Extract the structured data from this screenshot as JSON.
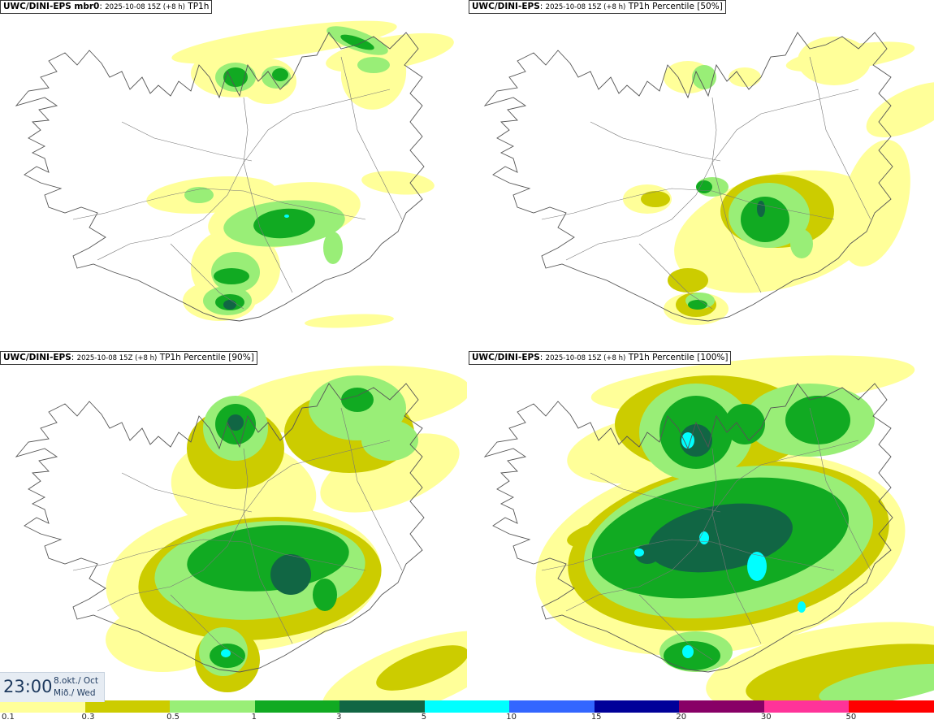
{
  "panels": [
    {
      "model": "UWC/DINI-EPS mbr0",
      "run": "2025-10-08 15Z (+8 h)",
      "product": "TP1h"
    },
    {
      "model": "UWC/DINI-EPS",
      "run": "2025-10-08 15Z (+8 h)",
      "product": "TP1h Percentile [50%]"
    },
    {
      "model": "UWC/DINI-EPS",
      "run": "2025-10-08 15Z (+8 h)",
      "product": "TP1h Percentile [90%]"
    },
    {
      "model": "UWC/DINI-EPS",
      "run": "2025-10-08 15Z (+8 h)",
      "product": "TP1h Percentile [100%]"
    }
  ],
  "valid_time": {
    "time": "23:00",
    "date_line1": "8.okt./ Oct",
    "date_line2": "Mið./ Wed"
  },
  "legend": {
    "colors": [
      "#ffff99",
      "#cccc00",
      "#99ee77",
      "#11aa22",
      "#116644",
      "#00ffff",
      "#3366ff",
      "#000099",
      "#880066",
      "#ff3399",
      "#ff0000"
    ],
    "ticks": [
      "0.1",
      "0.3",
      "0.5",
      "1",
      "3",
      "5",
      "10",
      "15",
      "20",
      "30",
      "50"
    ]
  }
}
